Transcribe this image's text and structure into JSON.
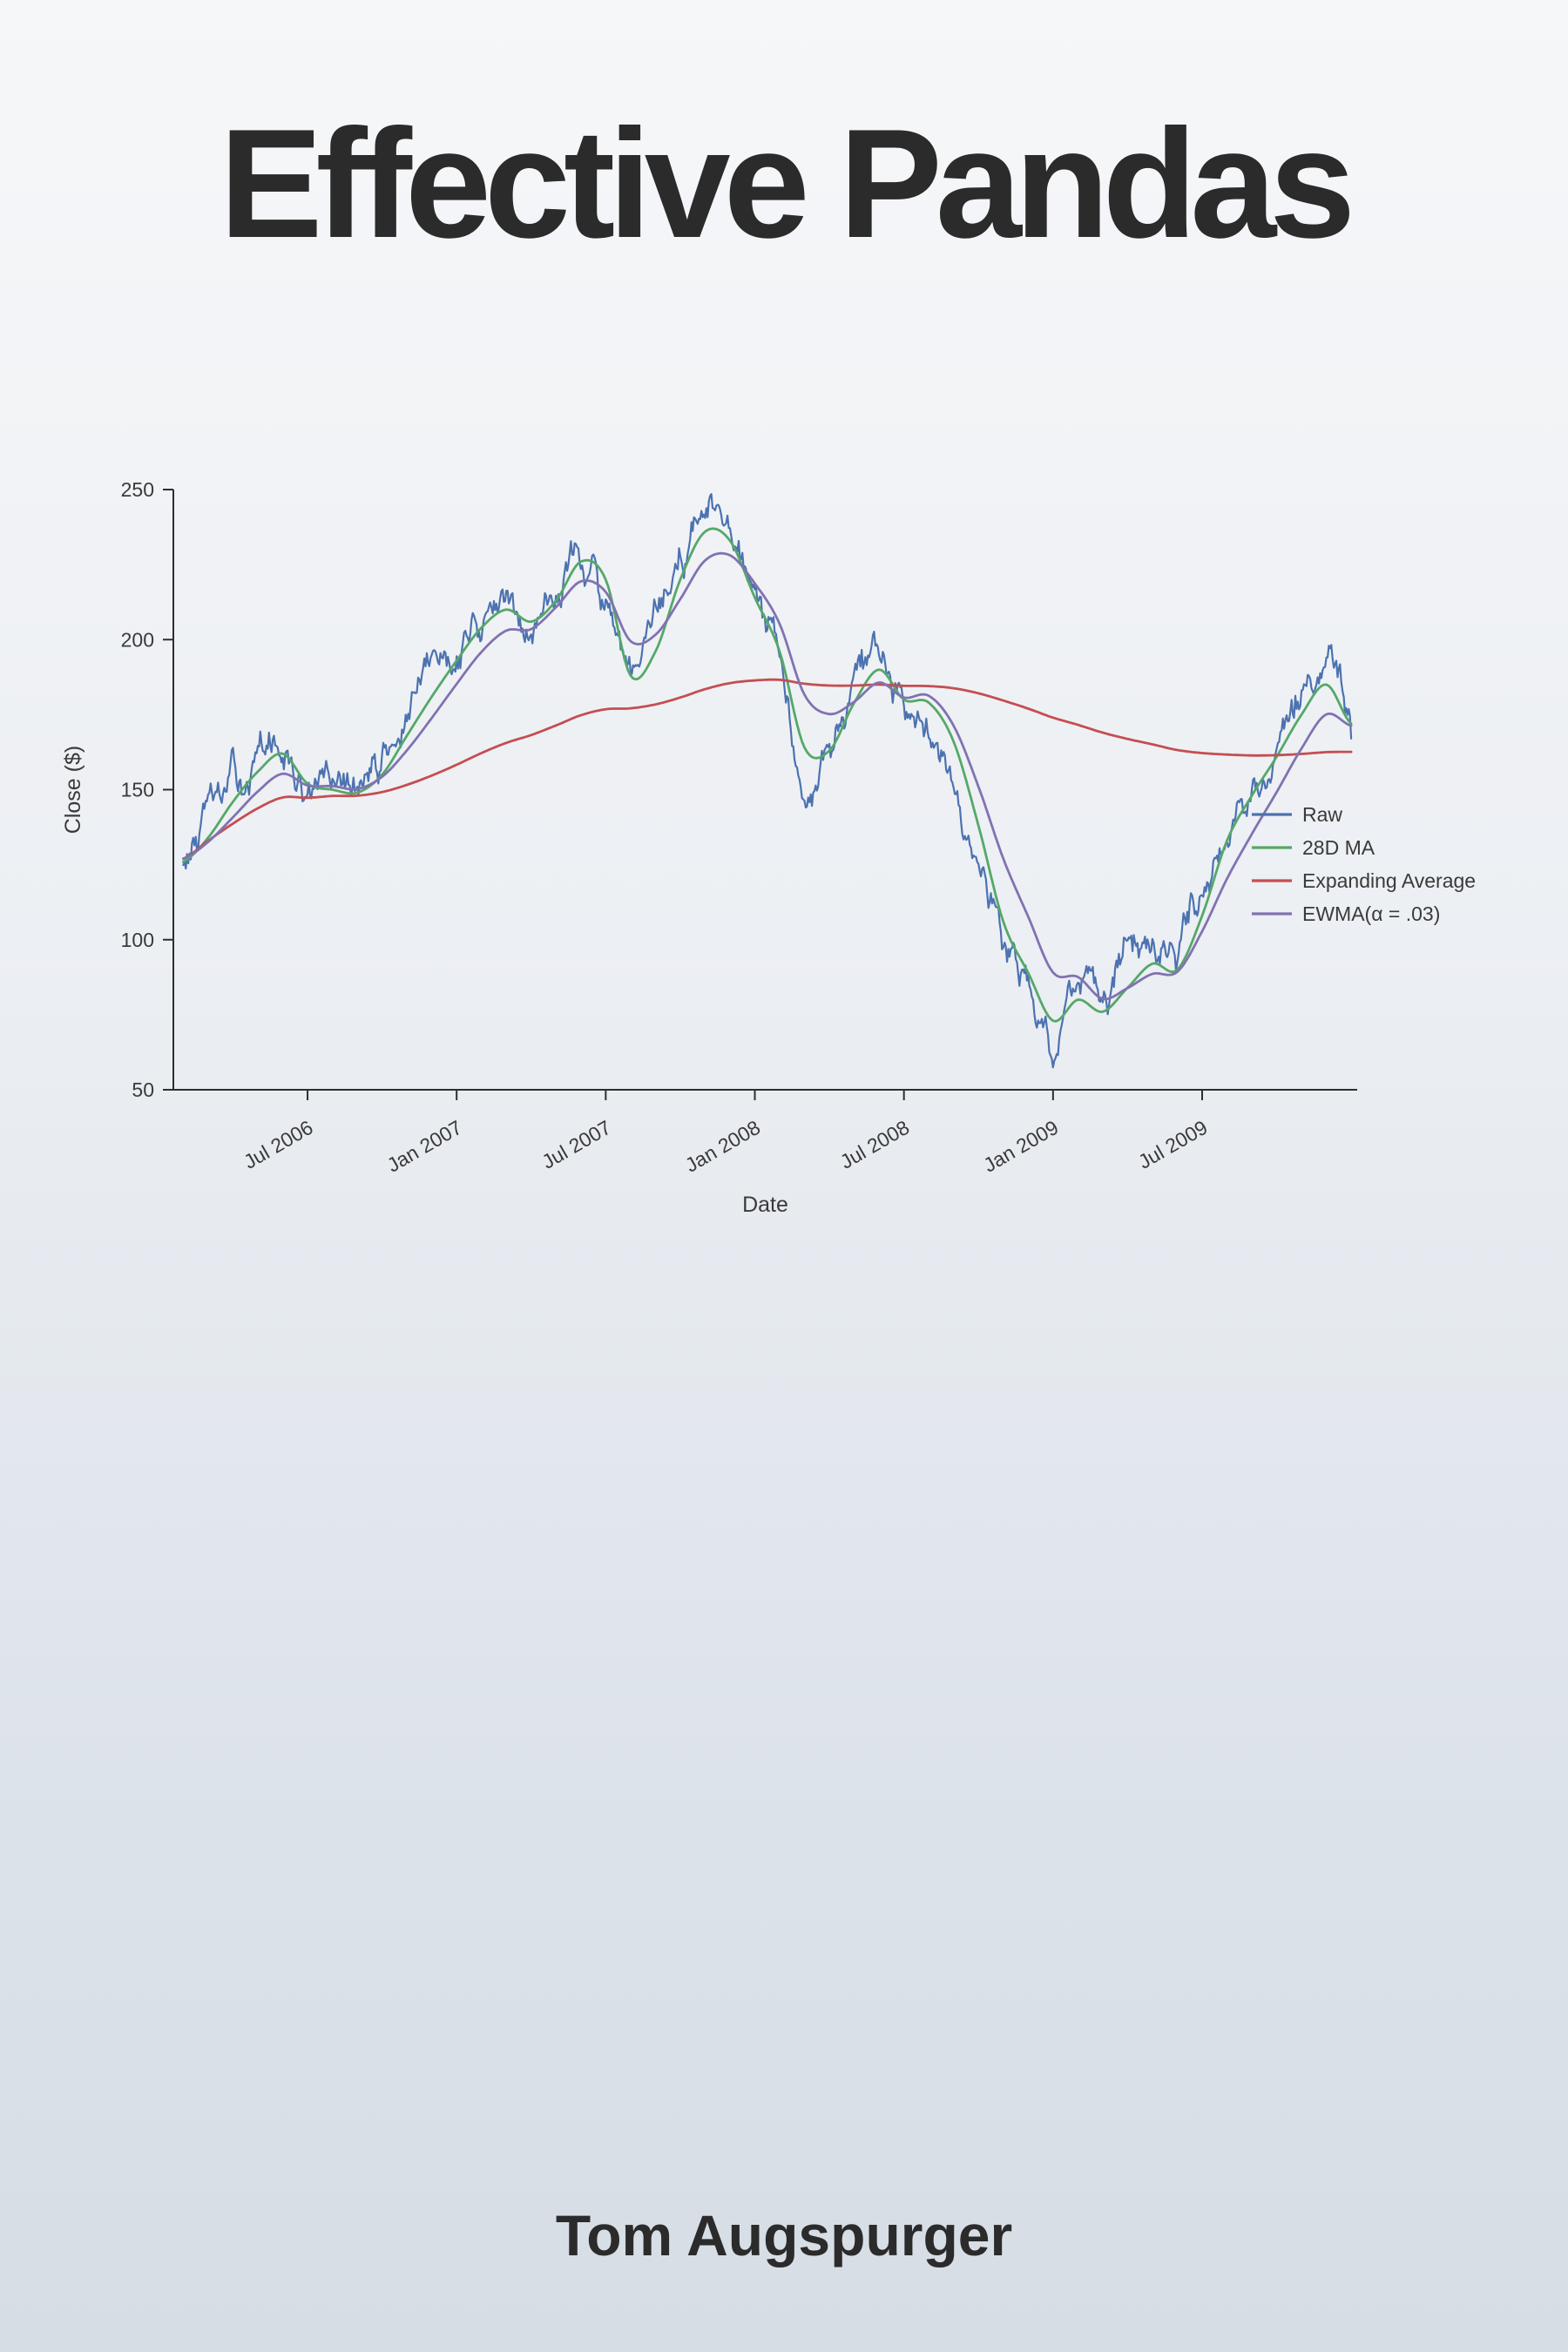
{
  "cover": {
    "title": "Effective Pandas",
    "author": "Tom Augspurger",
    "title_color": "#2b2b2b",
    "background_top": "#f6f7f9",
    "background_bottom": "#d6dde5"
  },
  "chart_data": {
    "type": "line",
    "title": "",
    "xlabel": "Date",
    "ylabel": "Close ($)",
    "grid": false,
    "legend_position": "center right",
    "xlim": [
      2006.05,
      2010.02
    ],
    "ylim": [
      50,
      250
    ],
    "y_ticks": [
      50,
      100,
      150,
      200,
      250
    ],
    "x_ticks": [
      {
        "t": 2006.5,
        "label": "Jul 2006"
      },
      {
        "t": 2007.0,
        "label": "Jan 2007"
      },
      {
        "t": 2007.5,
        "label": "Jul 2007"
      },
      {
        "t": 2008.0,
        "label": "Jan 2008"
      },
      {
        "t": 2008.5,
        "label": "Jul 2008"
      },
      {
        "t": 2009.0,
        "label": "Jan 2009"
      },
      {
        "t": 2009.5,
        "label": "Jul 2009"
      }
    ],
    "x_start": 2006.0833,
    "x_step": 0.0833333,
    "series": [
      {
        "name": "Raw",
        "color": "#4C72B0",
        "stroke_width": 2.2,
        "noise_amplitude": 3.8,
        "values": [
          127,
          139,
          150,
          159,
          162,
          147,
          151,
          149,
          159,
          173,
          186,
          198,
          208,
          211,
          204,
          219,
          229,
          212,
          181,
          204,
          227,
          241,
          230,
          208,
          190,
          155,
          168,
          184,
          193,
          175,
          182,
          160,
          128,
          100,
          86,
          68,
          86,
          72,
          88,
          94,
          90,
          118,
          140,
          152,
          165,
          180,
          188,
          167
        ]
      },
      {
        "name": "28D MA",
        "color": "#55A868",
        "stroke_width": 2.8,
        "values": [
          126,
          134,
          146,
          156,
          162,
          152,
          150,
          149,
          155,
          168,
          181,
          193,
          204,
          210,
          206,
          213,
          226,
          220,
          188,
          196,
          220,
          236,
          233,
          214,
          196,
          164,
          163,
          179,
          190,
          180,
          179,
          166,
          138,
          106,
          89,
          73,
          80,
          76,
          84,
          92,
          90,
          108,
          133,
          148,
          161,
          175,
          185,
          172
        ]
      },
      {
        "name": "Expanding Average",
        "color": "#C44E52",
        "stroke_width": 2.8,
        "values": [
          127,
          133,
          138.7,
          143.8,
          147.4,
          147.3,
          147.9,
          148,
          149.2,
          151.6,
          154.7,
          158.3,
          162.2,
          165.6,
          168.2,
          171.4,
          174.8,
          176.8,
          177.1,
          178.4,
          180.7,
          183.5,
          185.5,
          186.4,
          186.6,
          185.3,
          184.7,
          184.7,
          185,
          184.6,
          184.5,
          183.8,
          182.1,
          179.7,
          177,
          174,
          171.6,
          169,
          166.9,
          165.1,
          163.2,
          162.2,
          161.7,
          161.4,
          161.5,
          161.9,
          162.5,
          162.6
        ]
      },
      {
        "name": "EWMA(α = .03)",
        "color": "#8172B2",
        "stroke_width": 2.8,
        "values": [
          127,
          132.6,
          140.8,
          149.4,
          155.3,
          151.4,
          151.2,
          150.2,
          154.3,
          163.1,
          173.9,
          185.2,
          195.9,
          203,
          203.5,
          210.8,
          219.4,
          215.9,
          199.5,
          201.6,
          213.5,
          226.4,
          228.1,
          218.7,
          205.2,
          181.6,
          175.2,
          179.3,
          185.7,
          180.7,
          181.3,
          171.3,
          151,
          127,
          107.7,
          89.1,
          87.6,
          80.3,
          83.9,
          88.6,
          89.3,
          102.8,
          120.3,
          135.2,
          149.2,
          163.7,
          175.1,
          171.3
        ]
      }
    ]
  }
}
